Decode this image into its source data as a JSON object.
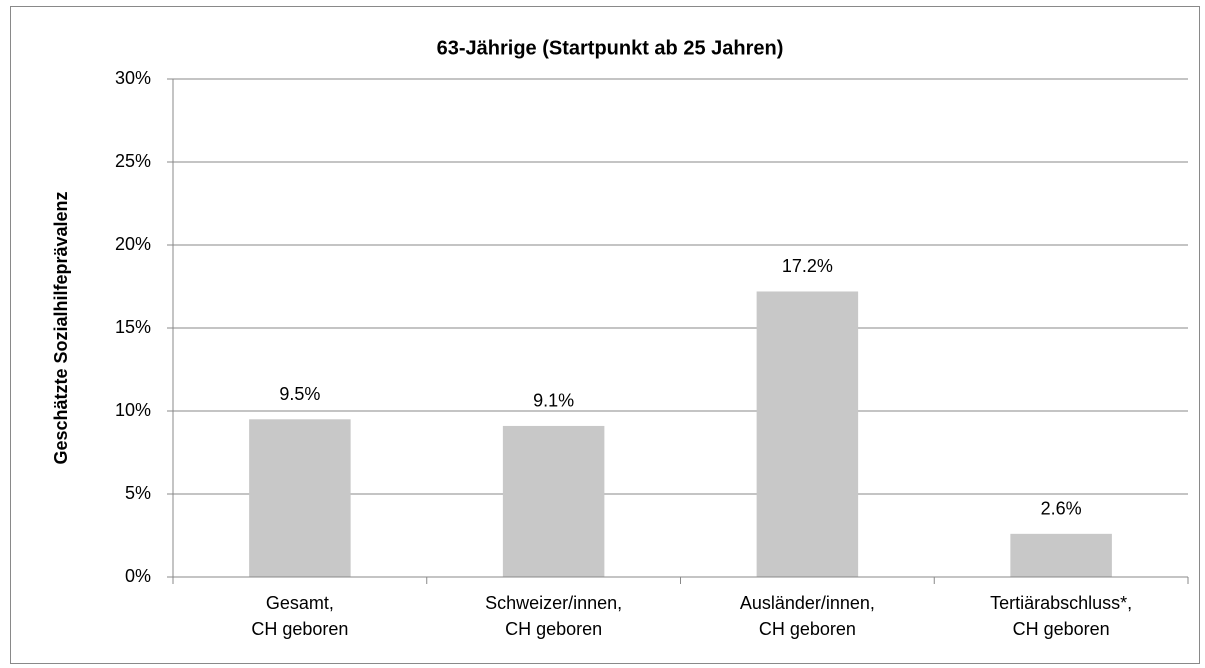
{
  "chart_data": {
    "type": "bar",
    "title": "63-Jährige (Startpunkt ab 25 Jahren)",
    "y_label": "Geschätzte Sozialhilfeprävalenz",
    "categories": [
      "Gesamt,\nCH geboren",
      "Schweizer/innen,\nCH geboren",
      "Ausländer/innen,\nCH geboren",
      "Tertiärabschluss*,\nCH geboren"
    ],
    "values": [
      9.5,
      9.1,
      17.2,
      2.6
    ],
    "value_labels": [
      "9.5%",
      "9.1%",
      "17.2%",
      "2.6%"
    ],
    "color": "#c8c8c8",
    "ylim": [
      0,
      30
    ],
    "yticks": [
      {
        "value": 0,
        "label": "0%"
      },
      {
        "value": 5,
        "label": "5%"
      },
      {
        "value": 10,
        "label": "10%"
      },
      {
        "value": 15,
        "label": "15%"
      },
      {
        "value": 20,
        "label": "20%"
      },
      {
        "value": 25,
        "label": "25%"
      },
      {
        "value": 30,
        "label": "30%"
      }
    ],
    "grid": true
  }
}
